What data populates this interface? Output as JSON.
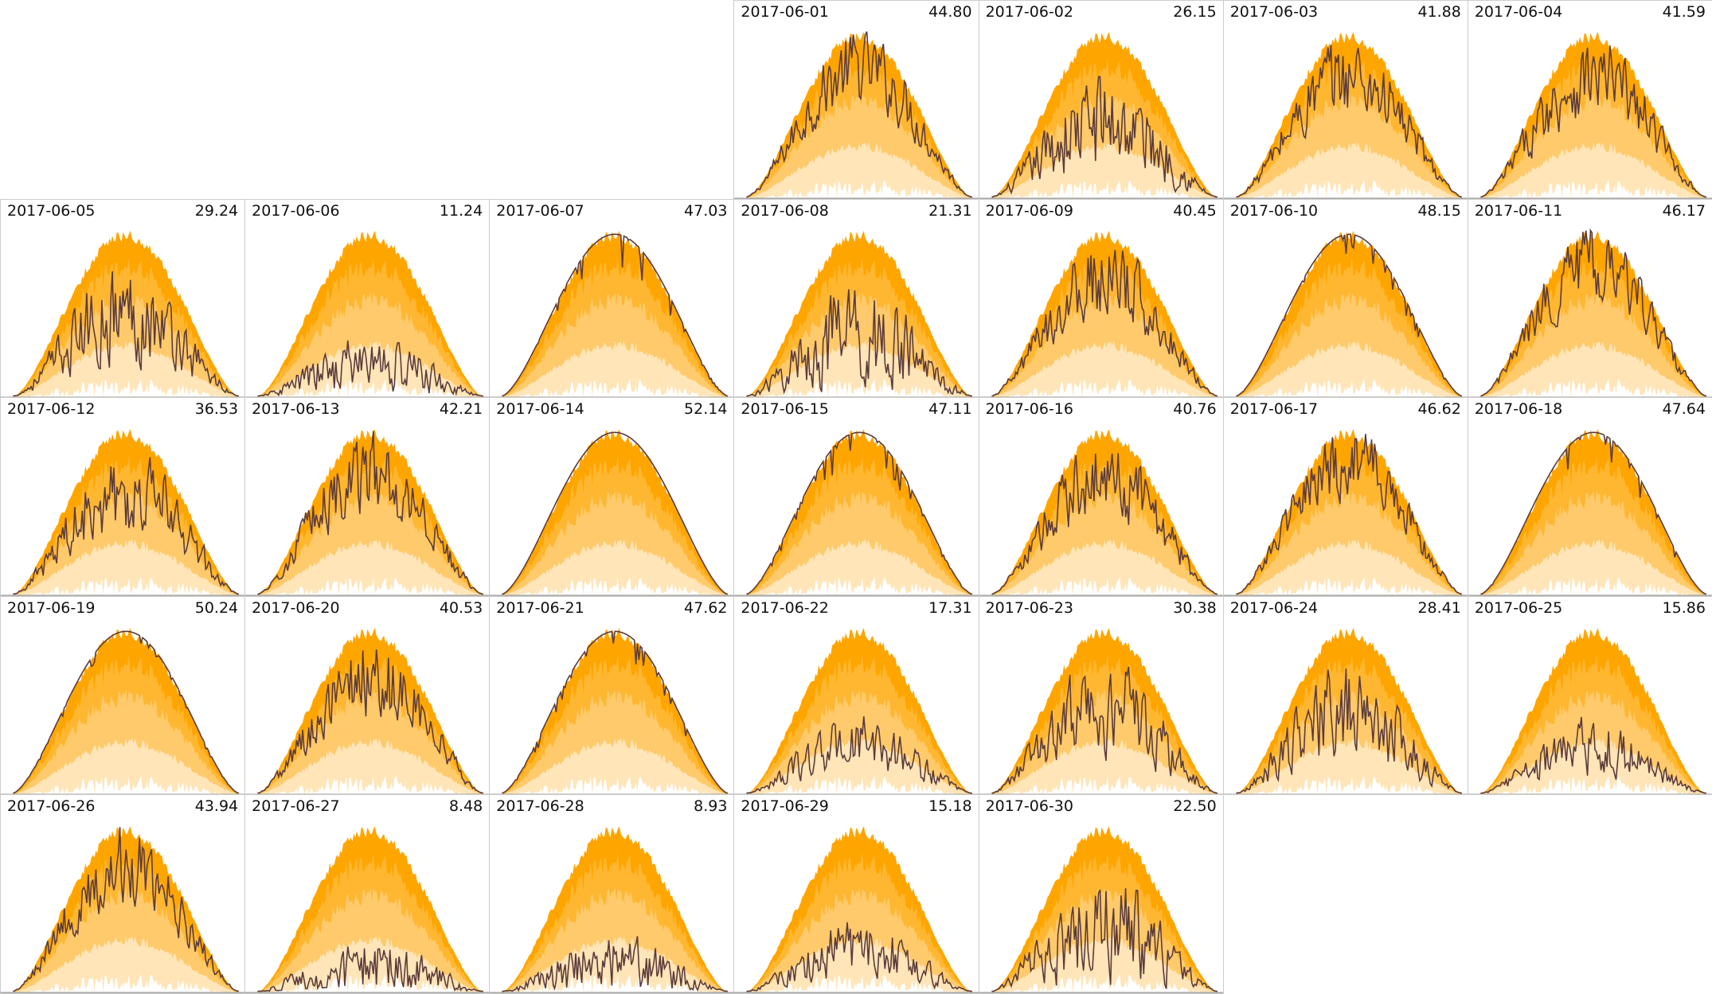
{
  "chart_data": {
    "type": "area",
    "title": "",
    "layout": "calendar grid, 7 columns, month starts on column 4",
    "first_column_offset": 3,
    "colors": {
      "band_max": "#ffa500",
      "band_high": "#ffb732",
      "band_mid": "#ffca6b",
      "band_low": "#ffe5b8",
      "line": "#5b3b3b",
      "border": "#cccccc"
    },
    "days": [
      {
        "date": "2017-06-01",
        "value": "44.80"
      },
      {
        "date": "2017-06-02",
        "value": "26.15"
      },
      {
        "date": "2017-06-03",
        "value": "41.88"
      },
      {
        "date": "2017-06-04",
        "value": "41.59"
      },
      {
        "date": "2017-06-05",
        "value": "29.24"
      },
      {
        "date": "2017-06-06",
        "value": "11.24"
      },
      {
        "date": "2017-06-07",
        "value": "47.03"
      },
      {
        "date": "2017-06-08",
        "value": "21.31"
      },
      {
        "date": "2017-06-09",
        "value": "40.45"
      },
      {
        "date": "2017-06-10",
        "value": "48.15"
      },
      {
        "date": "2017-06-11",
        "value": "46.17"
      },
      {
        "date": "2017-06-12",
        "value": "36.53"
      },
      {
        "date": "2017-06-13",
        "value": "42.21"
      },
      {
        "date": "2017-06-14",
        "value": "52.14"
      },
      {
        "date": "2017-06-15",
        "value": "47.11"
      },
      {
        "date": "2017-06-16",
        "value": "40.76"
      },
      {
        "date": "2017-06-17",
        "value": "46.62"
      },
      {
        "date": "2017-06-18",
        "value": "47.64"
      },
      {
        "date": "2017-06-19",
        "value": "50.24"
      },
      {
        "date": "2017-06-20",
        "value": "40.53"
      },
      {
        "date": "2017-06-21",
        "value": "47.62"
      },
      {
        "date": "2017-06-22",
        "value": "17.31"
      },
      {
        "date": "2017-06-23",
        "value": "30.38"
      },
      {
        "date": "2017-06-24",
        "value": "28.41"
      },
      {
        "date": "2017-06-25",
        "value": "15.86"
      },
      {
        "date": "2017-06-26",
        "value": "43.94"
      },
      {
        "date": "2017-06-27",
        "value": "8.48"
      },
      {
        "date": "2017-06-28",
        "value": "8.93"
      },
      {
        "date": "2017-06-29",
        "value": "15.18"
      },
      {
        "date": "2017-06-30",
        "value": "22.50"
      }
    ]
  }
}
